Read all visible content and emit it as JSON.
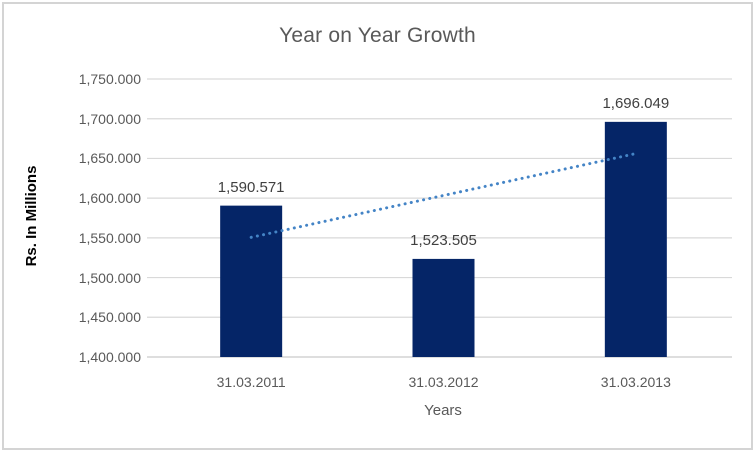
{
  "chart_data": {
    "type": "bar",
    "title": "Year on Year Growth",
    "xlabel": "Years",
    "ylabel": "Rs. In Millions",
    "categories": [
      "31.03.2011",
      "31.03.2012",
      "31.03.2013"
    ],
    "values": [
      1590.571,
      1523.505,
      1696.049
    ],
    "data_labels": [
      "1,590.571",
      "1,523.505",
      "1,696.049"
    ],
    "series_name": "Rs. In Millions",
    "ylim": [
      1400,
      1750
    ],
    "y_tick_values": [
      1750,
      1700,
      1650,
      1600,
      1550,
      1500,
      1450,
      1400
    ],
    "y_ticks": [
      "1,750.000",
      "1,700.000",
      "1,650.000",
      "1,600.000",
      "1,550.000",
      "1,500.000",
      "1,450.000",
      "1,400.000"
    ],
    "grid": true,
    "legend": "none",
    "trendline": {
      "type": "linear",
      "style": "dotted",
      "color": "#4484C6"
    },
    "colors": {
      "bar": "#052567",
      "grid": "#D9D9D9",
      "axis": "#D0D0D0",
      "title": "#595959",
      "tick_label": "#595959",
      "data_label": "#404040",
      "axis_title": "#000000",
      "border": "#D4D4D4",
      "background": "#FFFFFF"
    }
  }
}
